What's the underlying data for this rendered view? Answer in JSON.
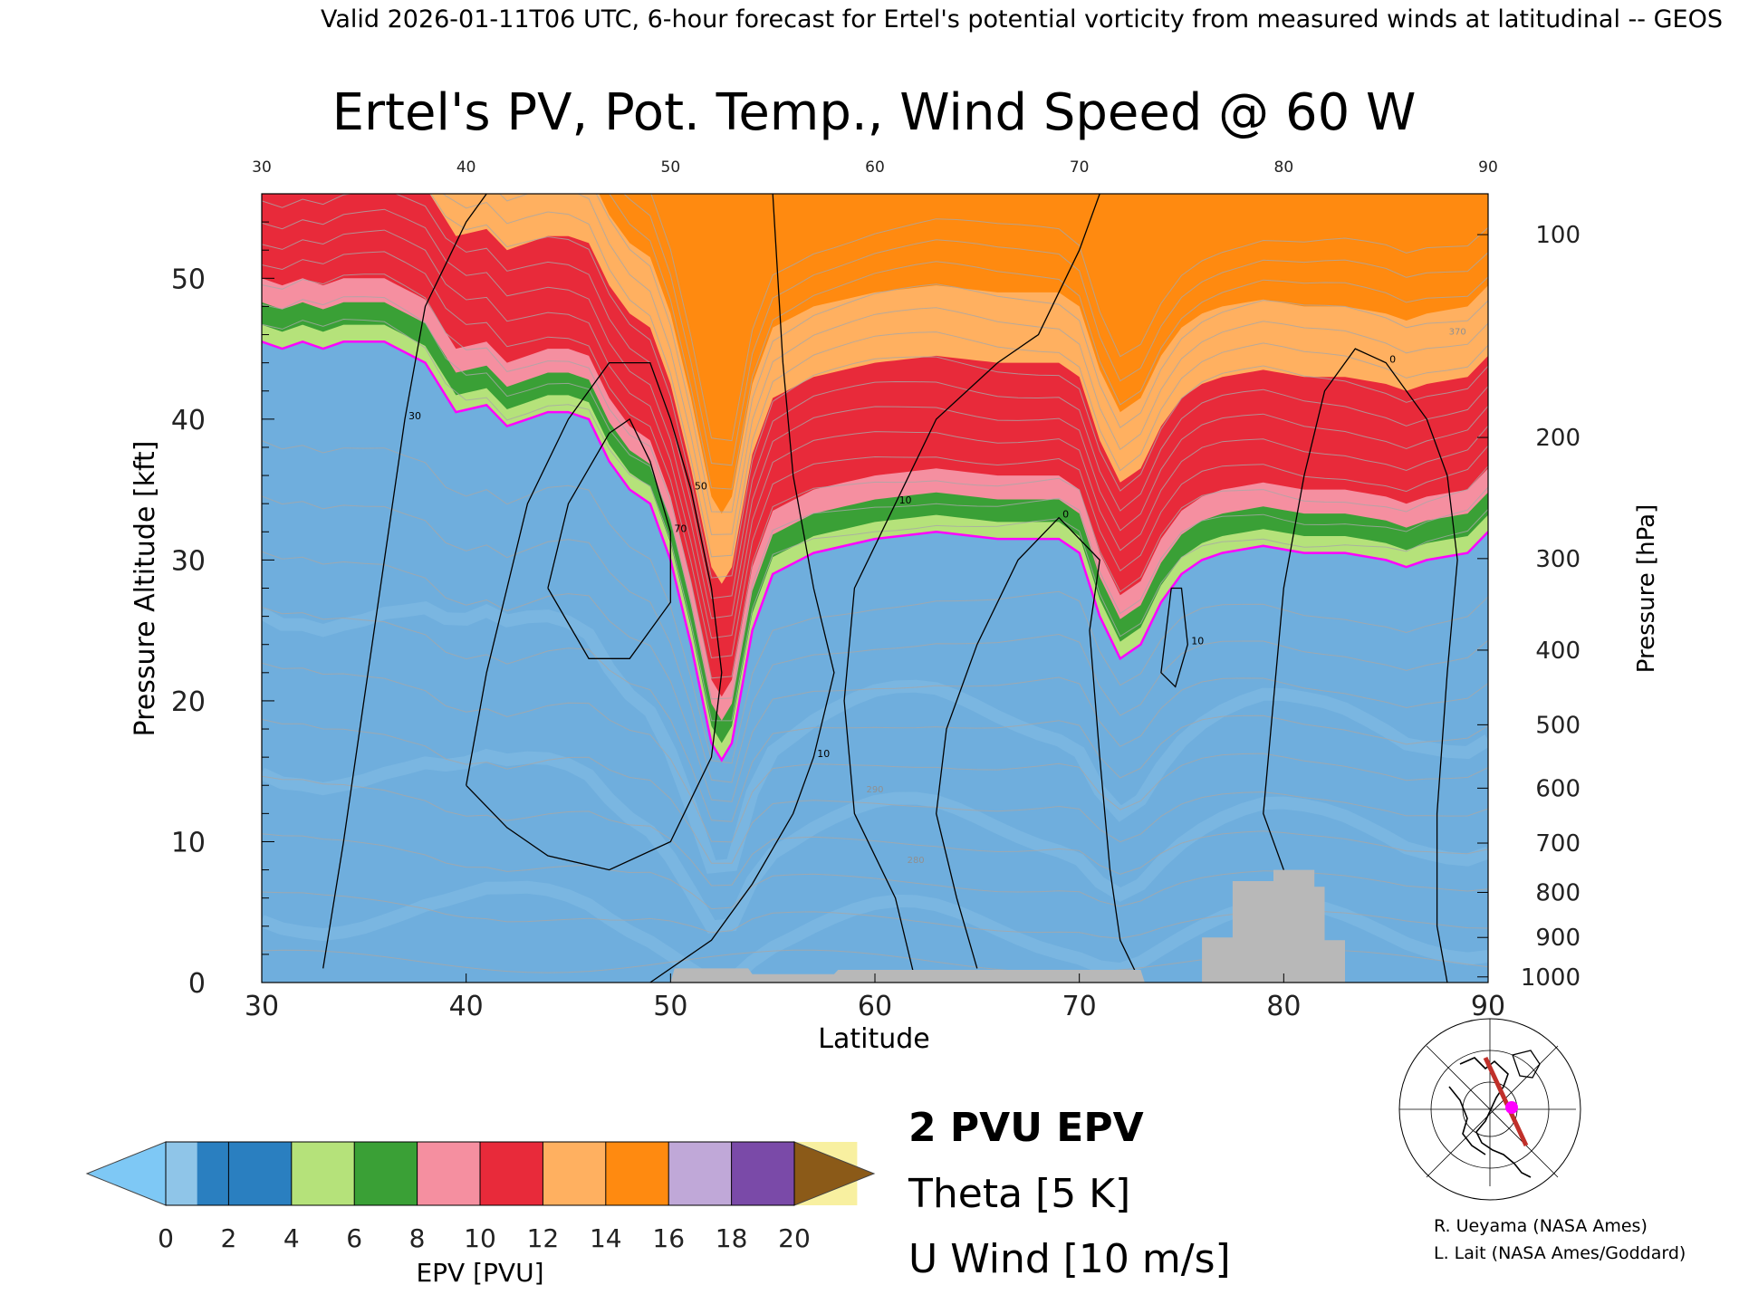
{
  "header": {
    "valid_line": "Valid 2026-01-11T06 UTC, 6-hour forecast for Ertel's potential vorticity from measured winds at latitudinal -- GEOS",
    "title": "Ertel's PV, Pot. Temp., Wind Speed @ 60 W"
  },
  "chart_data": {
    "type": "heatmap",
    "title": "Ertel's PV, Pot. Temp., Wind Speed @ 60 W",
    "xlabel": "Latitude",
    "ylabel": "Pressure Altitude [kft]",
    "y2label": "Pressure [hPa]",
    "xlim": [
      30,
      90
    ],
    "ylim": [
      0,
      56
    ],
    "x_ticks": [
      "30",
      "40",
      "50",
      "60",
      "70",
      "80",
      "90"
    ],
    "y_ticks": [
      "0",
      "10",
      "20",
      "30",
      "40",
      "50"
    ],
    "x_ticks_top": [
      "30",
      "40",
      "50",
      "60",
      "70",
      "80",
      "90"
    ],
    "pressure_ticks": [
      {
        "hpa": "100",
        "kft": 53.1
      },
      {
        "hpa": "200",
        "kft": 38.7
      },
      {
        "hpa": "300",
        "kft": 30.1
      },
      {
        "hpa": "400",
        "kft": 23.6
      },
      {
        "hpa": "500",
        "kft": 18.3
      },
      {
        "hpa": "600",
        "kft": 13.8
      },
      {
        "hpa": "700",
        "kft": 9.9
      },
      {
        "hpa": "800",
        "kft": 6.4
      },
      {
        "hpa": "900",
        "kft": 3.2
      },
      {
        "hpa": "1000",
        "kft": 0.4
      }
    ],
    "tropopause_2pvu": [
      [
        30,
        45.5
      ],
      [
        31,
        45
      ],
      [
        32,
        45.5
      ],
      [
        33,
        45
      ],
      [
        34,
        45.5
      ],
      [
        36,
        45.5
      ],
      [
        38,
        44
      ],
      [
        39.5,
        40.5
      ],
      [
        41,
        41
      ],
      [
        42,
        39.5
      ],
      [
        43,
        40
      ],
      [
        44,
        40.5
      ],
      [
        45,
        40.5
      ],
      [
        46,
        40
      ],
      [
        47,
        37
      ],
      [
        48,
        35
      ],
      [
        49,
        34
      ],
      [
        50,
        30
      ],
      [
        51,
        24
      ],
      [
        52,
        17
      ],
      [
        52.5,
        15.8
      ],
      [
        53,
        17
      ],
      [
        54,
        25
      ],
      [
        55,
        29
      ],
      [
        57,
        30.5
      ],
      [
        60,
        31.5
      ],
      [
        63,
        32
      ],
      [
        66,
        31.5
      ],
      [
        69,
        31.5
      ],
      [
        70,
        30.5
      ],
      [
        71,
        26
      ],
      [
        72,
        23
      ],
      [
        73,
        24
      ],
      [
        74,
        27
      ],
      [
        75,
        29
      ],
      [
        76,
        30
      ],
      [
        77,
        30.5
      ],
      [
        79,
        31
      ],
      [
        81,
        30.5
      ],
      [
        83,
        30.5
      ],
      [
        85,
        30
      ],
      [
        86,
        29.5
      ],
      [
        87,
        30
      ],
      [
        89,
        30.5
      ],
      [
        90,
        32
      ]
    ],
    "surface_mask": [
      [
        50,
        0
      ],
      [
        50.2,
        1.0
      ],
      [
        53.8,
        1.0
      ],
      [
        54,
        0.6
      ],
      [
        58,
        0.6
      ],
      [
        58.2,
        0.9
      ],
      [
        73,
        0.9
      ],
      [
        73.2,
        0
      ],
      [
        76,
        0
      ],
      [
        76,
        3.2
      ],
      [
        77.5,
        3.2
      ],
      [
        77.5,
        7.2
      ],
      [
        79.5,
        7.2
      ],
      [
        79.5,
        8.0
      ],
      [
        81.5,
        8.0
      ],
      [
        81.5,
        6.8
      ],
      [
        82,
        6.8
      ],
      [
        82,
        3.0
      ],
      [
        83,
        3.0
      ],
      [
        83,
        0
      ]
    ],
    "wind_contours": [
      {
        "label": "30",
        "points": [
          [
            33,
            1
          ],
          [
            34,
            10
          ],
          [
            35,
            20
          ],
          [
            36,
            30
          ],
          [
            37,
            40
          ],
          [
            38,
            48
          ],
          [
            39,
            51
          ],
          [
            40,
            54
          ],
          [
            41,
            56
          ]
        ]
      },
      {
        "label": "50",
        "points": [
          [
            40,
            14
          ],
          [
            41,
            22
          ],
          [
            42,
            28
          ],
          [
            43,
            34
          ],
          [
            45,
            40
          ],
          [
            47,
            44
          ],
          [
            49,
            44
          ],
          [
            50,
            40
          ],
          [
            51,
            35
          ],
          [
            52,
            28
          ],
          [
            52.5,
            22
          ],
          [
            52,
            16
          ],
          [
            50,
            10
          ],
          [
            47,
            8
          ],
          [
            44,
            9
          ],
          [
            42,
            11
          ],
          [
            40,
            14
          ]
        ]
      },
      {
        "label": "70",
        "points": [
          [
            44,
            28
          ],
          [
            45,
            34
          ],
          [
            47,
            39
          ],
          [
            48,
            40
          ],
          [
            49,
            37
          ],
          [
            50,
            32
          ],
          [
            50,
            27
          ],
          [
            48,
            23
          ],
          [
            46,
            23
          ],
          [
            44,
            28
          ]
        ]
      },
      {
        "label": "10",
        "points": [
          [
            55,
            56
          ],
          [
            55.5,
            44
          ],
          [
            56,
            36
          ],
          [
            57,
            28
          ],
          [
            58,
            22
          ],
          [
            57,
            16
          ],
          [
            56,
            12
          ],
          [
            54,
            7
          ],
          [
            52,
            3
          ],
          [
            49,
            0
          ]
        ]
      },
      {
        "label": "10",
        "points": [
          [
            62,
            0
          ],
          [
            61,
            6
          ],
          [
            59,
            12
          ],
          [
            58.5,
            20
          ],
          [
            59,
            28
          ],
          [
            61,
            34
          ],
          [
            63,
            40
          ],
          [
            66,
            44
          ],
          [
            68,
            46
          ],
          [
            70,
            52
          ],
          [
            71,
            56
          ]
        ]
      },
      {
        "label": "0",
        "points": [
          [
            65,
            1
          ],
          [
            64,
            6
          ],
          [
            63,
            12
          ],
          [
            63.5,
            18
          ],
          [
            65,
            24
          ],
          [
            67,
            30
          ],
          [
            69,
            33
          ],
          [
            71,
            30
          ],
          [
            70.5,
            25
          ],
          [
            71,
            16
          ],
          [
            71.5,
            8
          ],
          [
            72,
            3
          ],
          [
            73,
            0
          ]
        ]
      },
      {
        "label": "0",
        "points": [
          [
            82,
            2
          ],
          [
            80.5,
            6
          ],
          [
            79,
            12
          ],
          [
            79.5,
            20
          ],
          [
            80,
            28
          ],
          [
            81,
            36
          ],
          [
            82,
            42
          ],
          [
            83.5,
            45
          ],
          [
            85,
            44
          ],
          [
            87,
            40
          ],
          [
            88,
            36
          ],
          [
            88.5,
            30
          ],
          [
            88,
            22
          ],
          [
            87.5,
            12
          ],
          [
            87.5,
            4
          ],
          [
            88,
            0
          ]
        ]
      },
      {
        "label": "10",
        "points": [
          [
            74.5,
            28
          ],
          [
            74,
            22
          ],
          [
            74.7,
            21
          ],
          [
            75.3,
            24
          ],
          [
            75,
            28
          ],
          [
            74.5,
            28
          ]
        ]
      }
    ],
    "theta_labels": [
      "280",
      "290",
      "370"
    ],
    "legend": [
      {
        "text": "2 PVU EPV",
        "color": "#ff00ff"
      },
      {
        "text": "Theta [5 K]",
        "color": "#b4b4b4"
      },
      {
        "text": "U Wind [10 m/s]",
        "color": "#000000"
      }
    ],
    "colorbar": {
      "label": "EPV [PVU]",
      "ticks": [
        "0",
        "2",
        "4",
        "6",
        "8",
        "10",
        "12",
        "14",
        "16",
        "18",
        "20"
      ],
      "under_color": "#7ec8f5",
      "over_color": "#8b5a18",
      "bins": [
        "#8fc5e8",
        "#2a7fc0",
        "#b5e27a",
        "#3aa036",
        "#f58fa0",
        "#e82a3a",
        "#ffb060",
        "#ff8a10",
        "#c0a8d8",
        "#7a4aa8",
        "#f8f0a0"
      ]
    }
  },
  "credits": {
    "line1": "R. Ueyama (NASA Ames)",
    "line2": "L. Lait (NASA Ames/Goddard)"
  }
}
